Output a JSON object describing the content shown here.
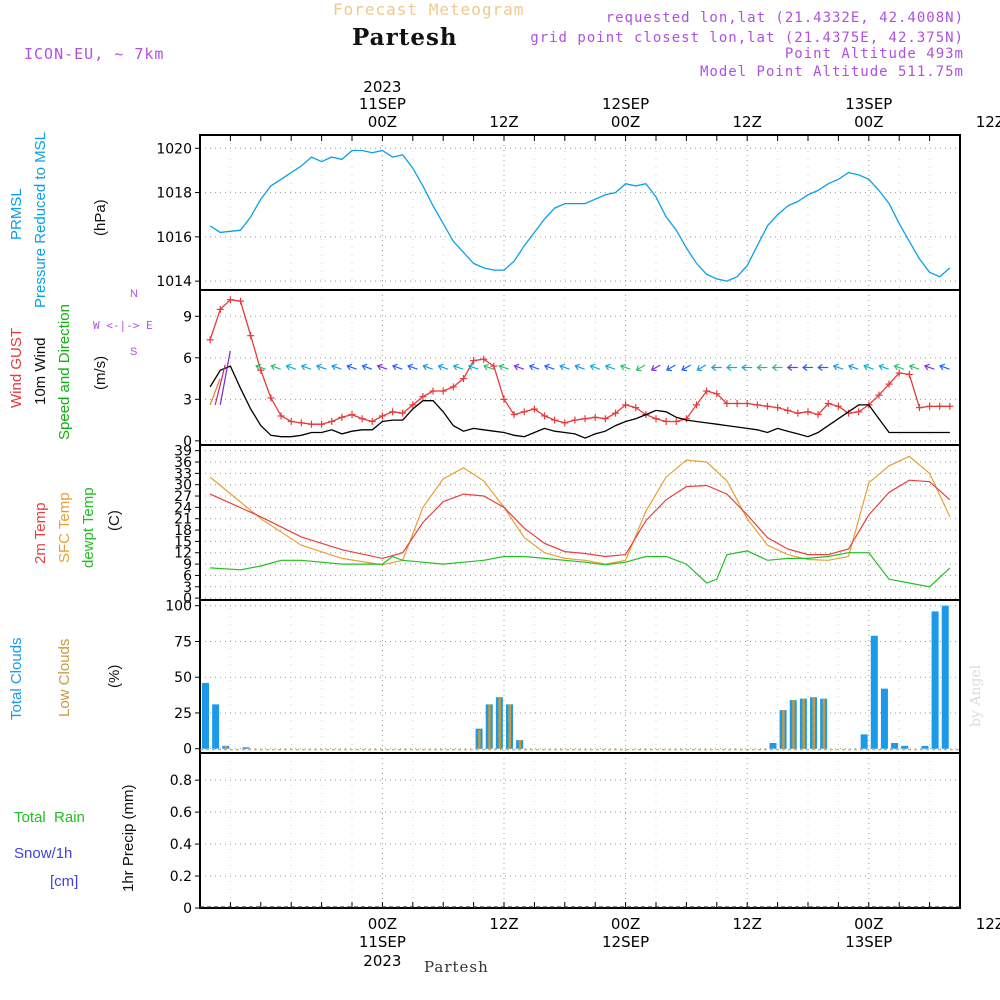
{
  "header": {
    "app_title": "Forecast Meteogram",
    "location": "Partesh",
    "model": "ICON-EU, ~ 7km",
    "requested": "requested lon,lat (21.4332E, 42.4008N)",
    "gridpoint": "grid point closest lon,lat (21.4375E, 42.375N)",
    "point_alt": "Point Altitude 493m",
    "model_alt": "Model Point Altitude 511.75m",
    "footer_location": "Partesh",
    "credit": "by Angel"
  },
  "time_axis": {
    "top": [
      {
        "line1": "2023",
        "line2": "11SEP",
        "line3": "00Z"
      },
      {
        "line1": "",
        "line2": "",
        "line3": "12Z"
      },
      {
        "line1": "",
        "line2": "12SEP",
        "line3": "00Z"
      },
      {
        "line1": "",
        "line2": "",
        "line3": "12Z"
      },
      {
        "line1": "",
        "line2": "13SEP",
        "line3": "00Z"
      },
      {
        "line1": "",
        "line2": "",
        "line3": "12Z"
      }
    ],
    "bottom": [
      {
        "line1": "00Z",
        "line2": "11SEP",
        "line3": "2023"
      },
      {
        "line1": "12Z",
        "line2": "",
        "line3": ""
      },
      {
        "line1": "00Z",
        "line2": "12SEP",
        "line3": ""
      },
      {
        "line1": "12Z",
        "line2": "",
        "line3": ""
      },
      {
        "line1": "00Z",
        "line2": "13SEP",
        "line3": ""
      },
      {
        "line1": "12Z",
        "line2": "",
        "line3": ""
      }
    ]
  },
  "panels": {
    "pressure": {
      "label1": "PRMSL",
      "label2": "Pressure Reduced to MSL",
      "unit": "(hPa)"
    },
    "wind": {
      "gust": "Wind GUST",
      "wind10": "10m Wind",
      "speed": "Speed and Direction",
      "unit": "(m/s)",
      "compass_n": "N",
      "compass_s": "S",
      "compass_we": "W <-|-> E"
    },
    "temp": {
      "t2m": "2m Temp",
      "sfc": "SFC Temp",
      "dew": "dewpt Temp",
      "unit": "(C)"
    },
    "clouds": {
      "total": "Total Clouds",
      "low": "Low Clouds",
      "unit": "(%)"
    },
    "precip": {
      "rain": "Total  Rain",
      "snow": "Snow/1h",
      "snow_unit": "[cm]",
      "ylabel": "1hr Precip (mm)"
    }
  },
  "colors": {
    "pressure": "#0aa0e8",
    "gust": "#e83a3a",
    "wind": "#000000",
    "t2m": "#e84040",
    "sfc": "#e8a030",
    "dew": "#20c020",
    "total_cloud": "#1a9ae8",
    "low_cloud": "#c89a3a",
    "rain": "#20c020",
    "snow": "#4040e0",
    "header_orange": "#f0c890",
    "header_purple": "#b050e0",
    "wind_green": "#10b010"
  },
  "chart_data": [
    {
      "type": "line",
      "title": "PRMSL Pressure Reduced to MSL",
      "ylabel": "(hPa)",
      "ylim": [
        1013.6,
        1020.6
      ],
      "yticks": [
        1014,
        1016,
        1018,
        1020
      ],
      "x_hours_start": -18,
      "x_hours_end": 57,
      "series": [
        {
          "name": "PRMSL",
          "x": [
            -17,
            -16,
            -14,
            -13,
            -12,
            -11,
            -10,
            -9,
            -8,
            -7,
            -6,
            -5,
            -4,
            -3,
            -2,
            -1,
            0,
            1,
            2,
            3,
            4,
            5,
            6,
            7,
            8,
            9,
            10,
            11,
            12,
            13,
            14,
            15,
            16,
            17,
            18,
            19,
            20,
            21,
            22,
            23,
            24,
            25,
            26,
            27,
            28,
            29,
            30,
            31,
            32,
            33,
            34,
            35,
            36,
            37,
            38,
            39,
            40,
            41,
            42,
            43,
            44,
            45,
            46,
            47,
            48,
            49,
            50,
            51,
            52,
            53,
            54,
            55,
            56
          ],
          "values": [
            1016.5,
            1016.2,
            1016.3,
            1016.9,
            1017.7,
            1018.3,
            1018.6,
            1018.9,
            1019.2,
            1019.6,
            1019.4,
            1019.6,
            1019.5,
            1019.9,
            1019.9,
            1019.8,
            1019.9,
            1019.6,
            1019.7,
            1019.1,
            1018.3,
            1017.4,
            1016.6,
            1015.8,
            1015.3,
            1014.8,
            1014.6,
            1014.5,
            1014.5,
            1014.9,
            1015.6,
            1016.2,
            1016.8,
            1017.3,
            1017.5,
            1017.5,
            1017.5,
            1017.7,
            1017.9,
            1018.0,
            1018.4,
            1018.3,
            1018.4,
            1017.8,
            1016.9,
            1016.3,
            1015.5,
            1014.8,
            1014.3,
            1014.1,
            1014.0,
            1014.2,
            1014.7,
            1015.6,
            1016.5,
            1017.0,
            1017.4,
            1017.6,
            1017.9,
            1018.1,
            1018.4,
            1018.6,
            1018.9,
            1018.8,
            1018.6,
            1018.1,
            1017.5,
            1016.6,
            1015.8,
            1015.0,
            1014.4,
            1014.2,
            1014.6
          ]
        }
      ]
    },
    {
      "type": "line",
      "title": "Wind GUST / 10m Wind Speed and Direction",
      "ylabel": "(m/s)",
      "ylim": [
        -0.3,
        10.9
      ],
      "yticks": [
        0,
        3,
        6,
        9
      ],
      "series": [
        {
          "name": "Wind GUST",
          "x": [
            -17,
            -16,
            -15,
            -14,
            -13,
            -12,
            -11,
            -10,
            -9,
            -8,
            -7,
            -6,
            -5,
            -4,
            -3,
            -2,
            -1,
            0,
            1,
            2,
            3,
            4,
            5,
            6,
            7,
            8,
            9,
            10,
            11,
            12,
            13,
            14,
            15,
            16,
            17,
            18,
            19,
            20,
            21,
            22,
            23,
            24,
            25,
            26,
            27,
            28,
            29,
            30,
            31,
            32,
            33,
            34,
            35,
            36,
            37,
            38,
            39,
            40,
            41,
            42,
            43,
            44,
            45,
            46,
            47,
            48,
            49,
            50,
            51,
            52,
            53,
            54,
            55,
            56
          ],
          "values": [
            7.3,
            9.5,
            10.2,
            10.1,
            7.6,
            5.1,
            3.1,
            1.8,
            1.4,
            1.3,
            1.2,
            1.2,
            1.4,
            1.7,
            1.9,
            1.6,
            1.4,
            1.8,
            2.1,
            2.0,
            2.6,
            3.2,
            3.6,
            3.6,
            3.9,
            4.5,
            5.8,
            5.9,
            5.4,
            3.0,
            1.9,
            2.1,
            2.3,
            1.8,
            1.5,
            1.3,
            1.5,
            1.6,
            1.7,
            1.6,
            2.0,
            2.6,
            2.4,
            1.9,
            1.6,
            1.4,
            1.4,
            1.6,
            2.6,
            3.6,
            3.4,
            2.7,
            2.7,
            2.7,
            2.6,
            2.5,
            2.4,
            2.2,
            2.0,
            2.1,
            1.9,
            2.7,
            2.5,
            2.0,
            2.1,
            2.6,
            3.3,
            4.1,
            4.9,
            4.8,
            2.4,
            2.5,
            2.5,
            2.5
          ]
        },
        {
          "name": "10m Wind",
          "x": [
            -17,
            -16,
            -15,
            -14,
            -13,
            -12,
            -11,
            -10,
            -9,
            -8,
            -7,
            -6,
            -5,
            -4,
            -3,
            -2,
            -1,
            0,
            1,
            2,
            3,
            4,
            5,
            6,
            7,
            8,
            9,
            10,
            11,
            12,
            13,
            14,
            15,
            16,
            17,
            18,
            19,
            20,
            21,
            22,
            23,
            24,
            25,
            26,
            27,
            28,
            29,
            30,
            31,
            32,
            33,
            34,
            35,
            36,
            37,
            38,
            39,
            40,
            41,
            42,
            43,
            44,
            45,
            46,
            47,
            48,
            49,
            50,
            51,
            52,
            53,
            54,
            55,
            56
          ],
          "values": [
            3.9,
            5.1,
            5.4,
            3.8,
            2.3,
            1.1,
            0.4,
            0.3,
            0.3,
            0.4,
            0.6,
            0.6,
            0.8,
            0.5,
            0.7,
            0.8,
            0.8,
            1.4,
            1.5,
            1.5,
            2.3,
            2.9,
            2.9,
            2.1,
            1.1,
            0.7,
            0.9,
            0.8,
            0.7,
            0.6,
            0.4,
            0.3,
            0.6,
            0.9,
            0.7,
            0.6,
            0.5,
            0.2,
            0.5,
            0.7,
            1.1,
            1.4,
            1.6,
            1.9,
            2.2,
            2.1,
            1.7,
            1.5,
            1.4,
            1.3,
            1.2,
            1.1,
            1.0,
            0.9,
            0.8,
            0.6,
            0.9,
            0.7,
            0.5,
            0.3,
            0.6,
            1.1,
            1.6,
            2.1,
            2.6,
            2.6,
            1.6,
            0.6,
            0.6,
            0.6,
            0.6,
            0.6,
            0.6,
            0.6
          ]
        }
      ]
    },
    {
      "type": "line",
      "title": "2m Temp / SFC Temp / dewpt Temp",
      "ylabel": "(C)",
      "ylim": [
        -0.5,
        40.5
      ],
      "yticks": [
        0,
        3,
        6,
        9,
        12,
        15,
        18,
        21,
        24,
        27,
        30,
        33,
        36,
        39
      ],
      "series": [
        {
          "name": "2m Temp",
          "x": [
            -17,
            -12,
            -8,
            -4,
            0,
            2,
            4,
            6,
            8,
            10,
            12,
            14,
            16,
            18,
            20,
            22,
            24,
            26,
            28,
            30,
            32,
            34,
            36,
            38,
            40,
            42,
            44,
            46,
            48,
            50,
            52,
            54,
            56
          ],
          "values": [
            27.5,
            21.5,
            16.2,
            12.8,
            10.5,
            12.0,
            20.0,
            25.5,
            27.5,
            27.0,
            24.0,
            18.5,
            14.5,
            12.3,
            11.8,
            11.0,
            11.5,
            20.5,
            26.0,
            29.5,
            29.8,
            27.5,
            22.0,
            16.0,
            13.0,
            11.5,
            11.5,
            13.0,
            22.0,
            28.0,
            31.2,
            30.8,
            26.0
          ]
        },
        {
          "name": "SFC Temp",
          "x": [
            -17,
            -12,
            -8,
            -4,
            0,
            2,
            4,
            6,
            8,
            10,
            12,
            14,
            16,
            18,
            20,
            22,
            24,
            26,
            28,
            30,
            32,
            34,
            36,
            38,
            40,
            42,
            44,
            46,
            48,
            50,
            52,
            54,
            56
          ],
          "values": [
            32.0,
            21.0,
            14.0,
            10.5,
            8.8,
            10.0,
            24.0,
            31.5,
            34.5,
            31.0,
            24.0,
            16.0,
            12.0,
            10.5,
            10.0,
            9.0,
            10.0,
            23.0,
            32.0,
            36.5,
            36.0,
            31.0,
            21.0,
            14.0,
            11.5,
            10.2,
            10.0,
            11.0,
            30.5,
            35.0,
            37.5,
            33.0,
            21.5
          ]
        },
        {
          "name": "dewpt Temp",
          "x": [
            -17,
            -14,
            -12,
            -10,
            -8,
            -6,
            -4,
            -2,
            0,
            1,
            2,
            4,
            6,
            8,
            10,
            12,
            14,
            16,
            18,
            20,
            22,
            24,
            26,
            28,
            30,
            32,
            33,
            34,
            36,
            38,
            40,
            42,
            44,
            46,
            48,
            50,
            52,
            54,
            56
          ],
          "values": [
            8.0,
            7.5,
            8.5,
            10.0,
            10.0,
            9.5,
            9.0,
            9.0,
            9.0,
            11.0,
            10.0,
            9.5,
            9.0,
            9.5,
            10.0,
            11.0,
            11.0,
            10.5,
            10.0,
            9.5,
            8.8,
            9.5,
            11.0,
            11.0,
            9.0,
            4.0,
            5.0,
            11.5,
            12.5,
            10.0,
            10.5,
            10.5,
            11.0,
            12.0,
            12.0,
            5.0,
            4.0,
            3.0,
            8.0
          ]
        }
      ]
    },
    {
      "type": "bar",
      "title": "Total Clouds / Low Clouds",
      "ylabel": "(%)",
      "ylim": [
        -3,
        104
      ],
      "yticks": [
        0,
        25,
        50,
        75,
        100
      ],
      "series": [
        {
          "name": "Total Clouds",
          "x": [
            -18,
            -17,
            -16,
            -14,
            9,
            10,
            11,
            12,
            13,
            14,
            38,
            39,
            40,
            41,
            42,
            43,
            44,
            45,
            46,
            47,
            48,
            49,
            50,
            51,
            52,
            53,
            54,
            55,
            56
          ],
          "values": [
            46,
            31,
            2,
            1,
            14,
            31,
            36,
            31,
            6,
            0,
            4,
            27,
            34,
            35,
            36,
            35,
            0,
            0,
            0,
            10,
            79,
            42,
            4,
            2,
            0,
            2,
            96,
            100,
            0
          ]
        },
        {
          "name": "Low Clouds",
          "x": [
            -18,
            -17,
            -16,
            -14,
            9,
            10,
            11,
            12,
            13,
            14,
            38,
            39,
            40,
            41,
            42,
            43,
            44,
            45,
            46,
            47,
            48,
            49,
            50,
            51,
            52,
            53,
            54,
            55,
            56
          ],
          "values": [
            0,
            0,
            2,
            0,
            13,
            31,
            36,
            31,
            6,
            0,
            0,
            27,
            34,
            35,
            36,
            35,
            0,
            0,
            0,
            0,
            0,
            0,
            0,
            0,
            0,
            0,
            0,
            0,
            0
          ]
        }
      ]
    },
    {
      "type": "bar",
      "title": "1hr Precip",
      "ylabel": "1hr Precip (mm)",
      "ylim": [
        0,
        0.97
      ],
      "yticks": [
        0,
        0.2,
        0.4,
        0.6,
        0.8
      ],
      "series": [
        {
          "name": "Total Rain",
          "values": []
        },
        {
          "name": "Snow/1h",
          "values": []
        }
      ]
    }
  ]
}
